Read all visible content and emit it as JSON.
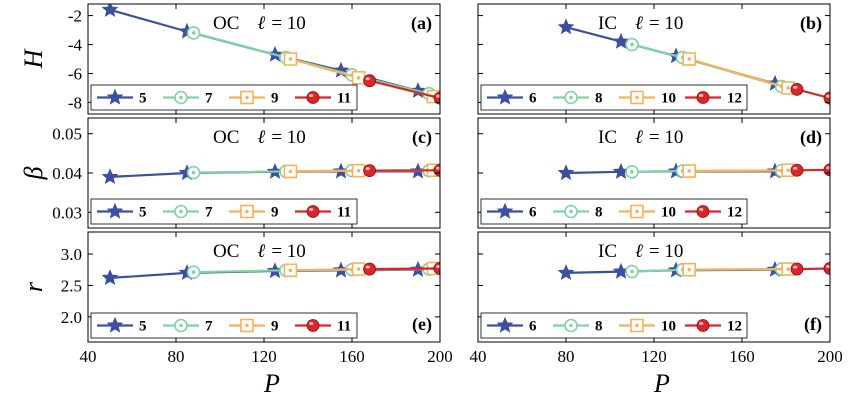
{
  "colors": {
    "5": "#3c4fa0",
    "6": "#3c4fa0",
    "7": "#7fd3a4",
    "8": "#7fd3a4",
    "9": "#f5b25a",
    "10": "#f5b25a",
    "11": "#d8262a",
    "12": "#d8262a"
  },
  "markers": {
    "5": "star",
    "6": "star",
    "7": "circle-dot",
    "8": "circle-dot",
    "9": "square-dot",
    "10": "square-dot",
    "11": "sphere",
    "12": "sphere"
  },
  "axis_text": {
    "x_ticks": [
      "40",
      "80",
      "120",
      "160",
      "200"
    ],
    "x_label": "P"
  },
  "chart_data": [
    {
      "id": "a",
      "type": "line",
      "panel_label": "(a)",
      "annotation": {
        "bc": "OC",
        "ell": "ℓ",
        "eq": "= 10"
      },
      "ylabel": "H",
      "xlim": [
        40,
        200
      ],
      "ylim": [
        -8.8,
        -1.2
      ],
      "yticks": [
        -2,
        -4,
        -6,
        -8
      ],
      "ytick_labels": [
        "-2",
        "-4",
        "-6",
        "-8"
      ],
      "legend": [
        "5",
        "7",
        "9",
        "11"
      ],
      "series": [
        {
          "name": "5",
          "x": [
            50,
            85,
            125,
            155,
            190
          ],
          "y": [
            -1.6,
            -3.1,
            -4.7,
            -5.8,
            -7.2
          ]
        },
        {
          "name": "7",
          "x": [
            88,
            130,
            160,
            195
          ],
          "y": [
            -3.2,
            -4.9,
            -6.1,
            -7.4
          ]
        },
        {
          "name": "9",
          "x": [
            132,
            163,
            197
          ],
          "y": [
            -5.0,
            -6.3,
            -7.6
          ]
        },
        {
          "name": "11",
          "x": [
            168,
            200
          ],
          "y": [
            -6.5,
            -7.7
          ]
        }
      ]
    },
    {
      "id": "b",
      "type": "line",
      "panel_label": "(b)",
      "annotation": {
        "bc": "IC",
        "ell": "ℓ",
        "eq": "= 10"
      },
      "ylabel": "",
      "xlim": [
        40,
        200
      ],
      "ylim": [
        -8.8,
        -1.2
      ],
      "yticks": [
        -2,
        -4,
        -6,
        -8
      ],
      "ytick_labels": [],
      "legend": [
        "6",
        "8",
        "10",
        "12"
      ],
      "series": [
        {
          "name": "6",
          "x": [
            80,
            105,
            130,
            175
          ],
          "y": [
            -2.8,
            -3.8,
            -4.8,
            -6.7
          ]
        },
        {
          "name": "8",
          "x": [
            110,
            133,
            178
          ],
          "y": [
            -4.0,
            -4.9,
            -6.9
          ]
        },
        {
          "name": "10",
          "x": [
            136,
            181
          ],
          "y": [
            -5.0,
            -7.0
          ]
        },
        {
          "name": "12",
          "x": [
            185,
            200
          ],
          "y": [
            -7.1,
            -7.7
          ]
        }
      ]
    },
    {
      "id": "c",
      "type": "line",
      "panel_label": "(c)",
      "annotation": {
        "bc": "OC",
        "ell": "ℓ",
        "eq": "= 10"
      },
      "ylabel": "β",
      "xlim": [
        40,
        200
      ],
      "ylim": [
        0.026,
        0.054
      ],
      "yticks": [
        0.03,
        0.04,
        0.05
      ],
      "ytick_labels": [
        "0.03",
        "0.04",
        "0.05"
      ],
      "legend": [
        "5",
        "7",
        "9",
        "11"
      ],
      "series": [
        {
          "name": "5",
          "x": [
            50,
            85,
            125,
            155,
            190
          ],
          "y": [
            0.039,
            0.04,
            0.0403,
            0.0404,
            0.0404
          ]
        },
        {
          "name": "7",
          "x": [
            88,
            130,
            160,
            195
          ],
          "y": [
            0.0401,
            0.0404,
            0.0406,
            0.0406
          ]
        },
        {
          "name": "9",
          "x": [
            132,
            163,
            197
          ],
          "y": [
            0.0404,
            0.0406,
            0.0407
          ]
        },
        {
          "name": "11",
          "x": [
            168,
            200
          ],
          "y": [
            0.0406,
            0.0407
          ]
        }
      ]
    },
    {
      "id": "d",
      "type": "line",
      "panel_label": "(d)",
      "annotation": {
        "bc": "IC",
        "ell": "ℓ",
        "eq": "= 10"
      },
      "ylabel": "",
      "xlim": [
        40,
        200
      ],
      "ylim": [
        0.026,
        0.054
      ],
      "yticks": [
        0.03,
        0.04,
        0.05
      ],
      "ytick_labels": [],
      "legend": [
        "6",
        "8",
        "10",
        "12"
      ],
      "series": [
        {
          "name": "6",
          "x": [
            80,
            105,
            130,
            175
          ],
          "y": [
            0.04,
            0.0403,
            0.0404,
            0.0404
          ]
        },
        {
          "name": "8",
          "x": [
            110,
            133,
            178
          ],
          "y": [
            0.0403,
            0.0405,
            0.0406
          ]
        },
        {
          "name": "10",
          "x": [
            136,
            181
          ],
          "y": [
            0.0405,
            0.0407
          ]
        },
        {
          "name": "12",
          "x": [
            185,
            200
          ],
          "y": [
            0.0407,
            0.0408
          ]
        }
      ]
    },
    {
      "id": "e",
      "type": "line",
      "panel_label": "(e)",
      "annotation": {
        "bc": "OC",
        "ell": "ℓ",
        "eq": "= 10"
      },
      "ylabel": "r",
      "xlim": [
        40,
        200
      ],
      "ylim": [
        1.6,
        3.35
      ],
      "yticks": [
        2.0,
        2.5,
        3.0
      ],
      "ytick_labels": [
        "2.0",
        "2.5",
        "3.0"
      ],
      "legend": [
        "5",
        "7",
        "9",
        "11"
      ],
      "series": [
        {
          "name": "5",
          "x": [
            50,
            85,
            125,
            155,
            190
          ],
          "y": [
            2.62,
            2.7,
            2.73,
            2.74,
            2.75
          ]
        },
        {
          "name": "7",
          "x": [
            88,
            130,
            160,
            195
          ],
          "y": [
            2.71,
            2.74,
            2.75,
            2.76
          ]
        },
        {
          "name": "9",
          "x": [
            132,
            163,
            197
          ],
          "y": [
            2.74,
            2.76,
            2.77
          ]
        },
        {
          "name": "11",
          "x": [
            168,
            200
          ],
          "y": [
            2.76,
            2.77
          ]
        }
      ]
    },
    {
      "id": "f",
      "type": "line",
      "panel_label": "(f)",
      "annotation": {
        "bc": "IC",
        "ell": "ℓ",
        "eq": "= 10"
      },
      "ylabel": "",
      "xlim": [
        40,
        200
      ],
      "ylim": [
        1.6,
        3.35
      ],
      "yticks": [
        2.0,
        2.5,
        3.0
      ],
      "ytick_labels": [],
      "legend": [
        "6",
        "8",
        "10",
        "12"
      ],
      "series": [
        {
          "name": "6",
          "x": [
            80,
            105,
            130,
            175
          ],
          "y": [
            2.7,
            2.72,
            2.74,
            2.75
          ]
        },
        {
          "name": "8",
          "x": [
            110,
            133,
            178
          ],
          "y": [
            2.72,
            2.75,
            2.76
          ]
        },
        {
          "name": "10",
          "x": [
            136,
            181
          ],
          "y": [
            2.75,
            2.76
          ]
        },
        {
          "name": "12",
          "x": [
            185,
            200
          ],
          "y": [
            2.76,
            2.77
          ]
        }
      ]
    }
  ]
}
